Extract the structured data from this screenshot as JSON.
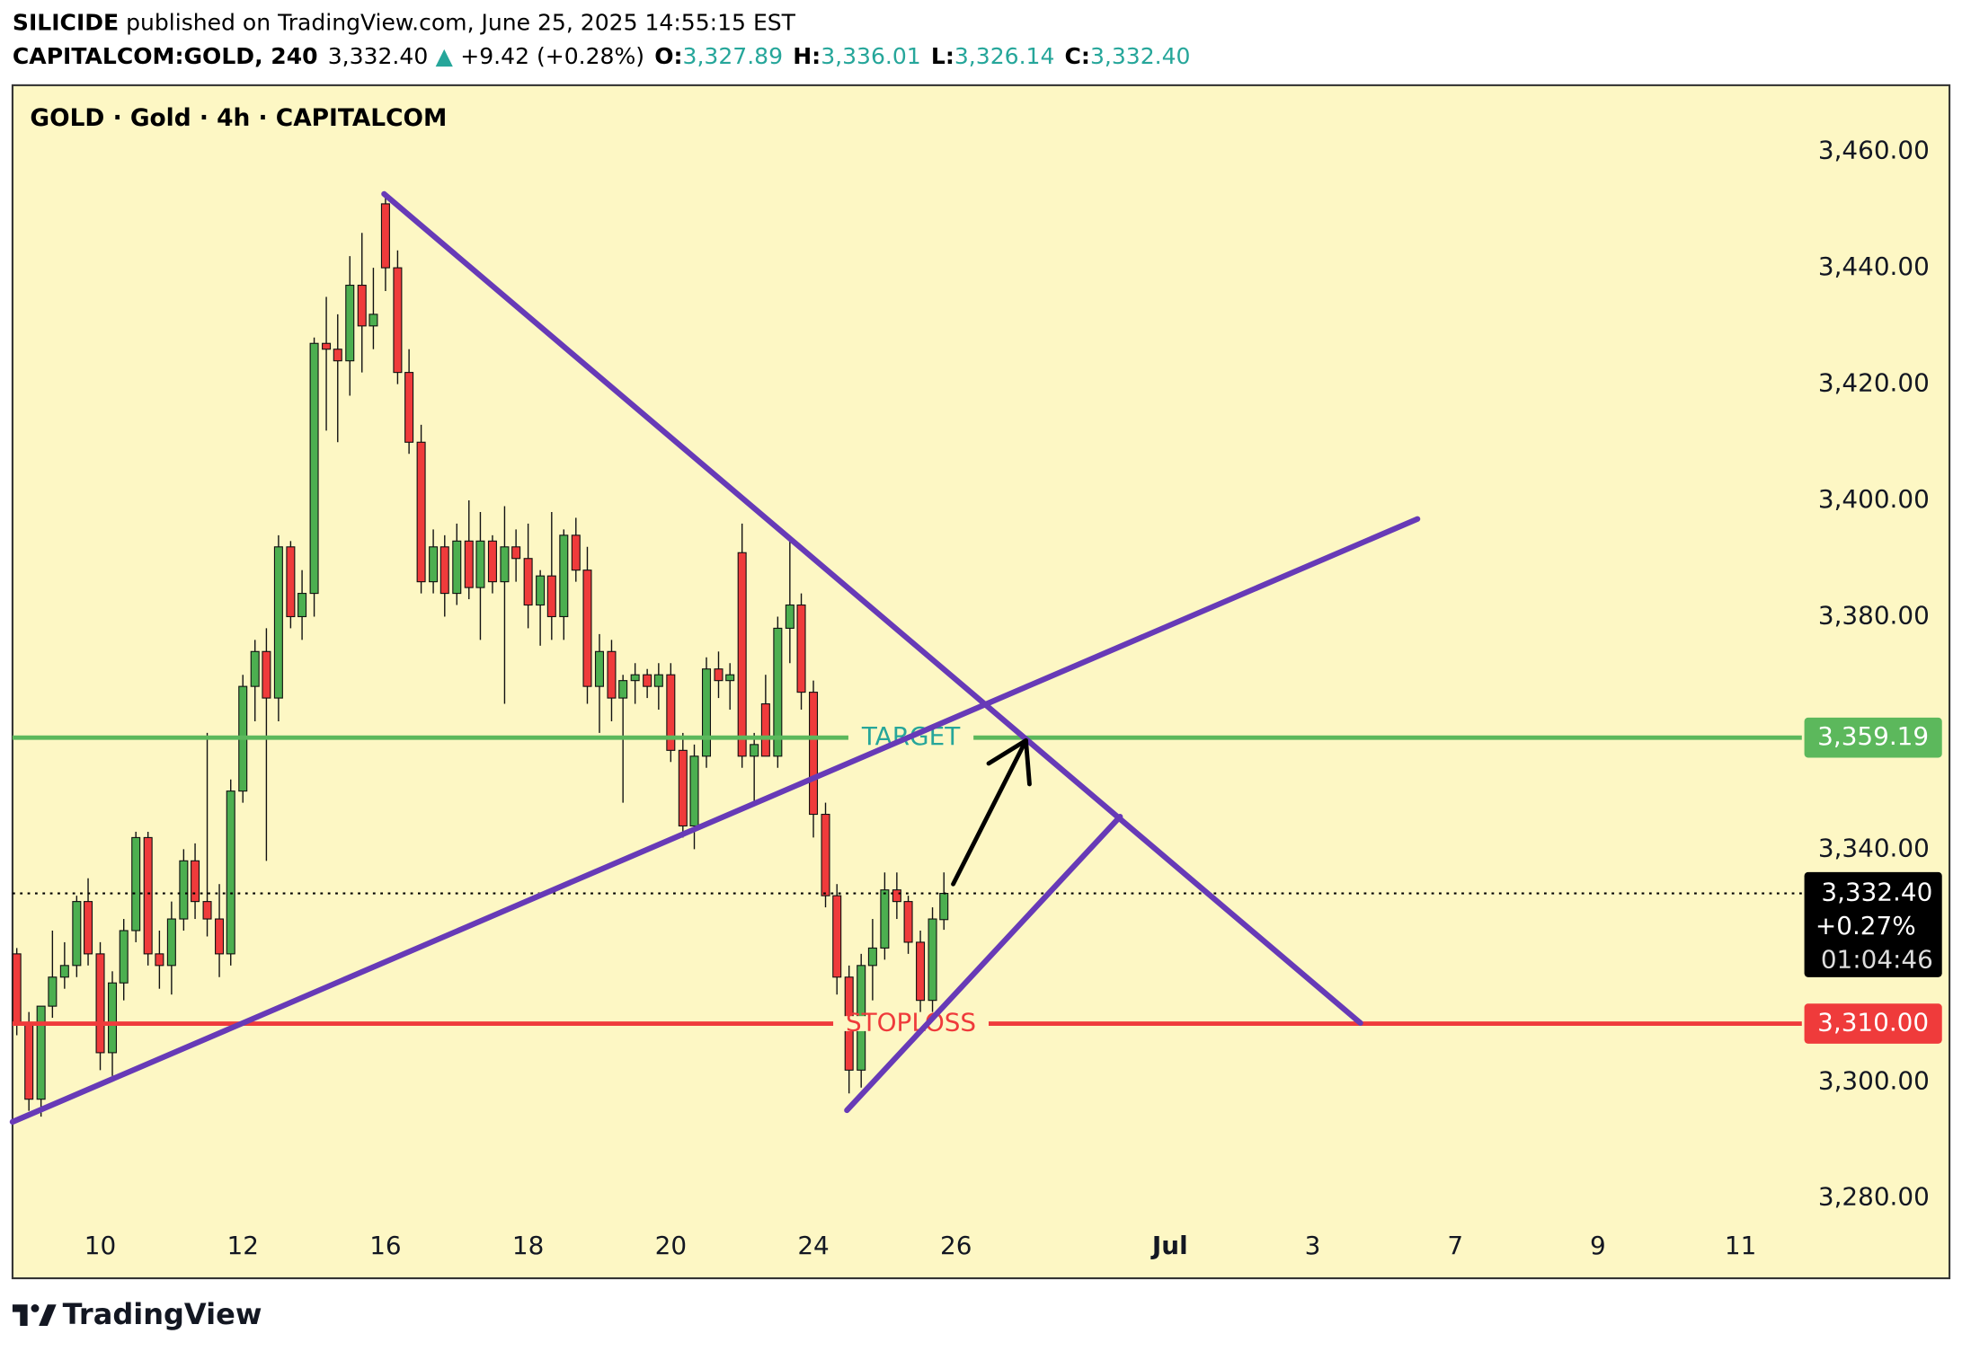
{
  "header": {
    "author": "SILICIDE",
    "published": " published on TradingView.com, June 25, 2025 14:55:15 EST",
    "symbol": "CAPITALCOM:GOLD, 240",
    "last": "3,332.40",
    "change_arrow": "▲",
    "change": "+9.42 (+0.28%)",
    "ohlc": [
      {
        "key": "O:",
        "value": "3,327.89"
      },
      {
        "key": "H:",
        "value": "3,336.01"
      },
      {
        "key": "L:",
        "value": "3,326.14"
      },
      {
        "key": "C:",
        "value": "3,332.40"
      }
    ]
  },
  "footer": {
    "brand": "TradingView"
  },
  "chart_data": {
    "type": "candlestick",
    "title": "GOLD · Gold · 4h · CAPITALCOM",
    "up_color": "#4caf50",
    "down_color": "#ef3b3b",
    "x": [
      -1.17,
      -1,
      -0.83,
      -0.67,
      -0.5,
      -0.33,
      -0.17,
      0,
      0.17,
      0.33,
      0.5,
      0.67,
      0.83,
      1,
      1.17,
      1.33,
      1.5,
      1.67,
      1.83,
      2,
      2.17,
      2.33,
      2.5,
      2.67,
      2.83,
      3,
      3.17,
      3.33,
      3.5,
      3.67,
      3.83,
      4,
      4.17,
      4.33,
      4.5,
      4.67,
      4.83,
      5,
      5.17,
      5.33,
      5.5,
      5.67,
      5.83,
      6,
      6.17,
      6.33,
      6.5,
      6.67,
      6.83,
      7,
      7.17,
      7.33,
      7.5,
      7.67,
      7.83,
      8,
      8.17,
      8.33,
      8.5,
      8.67,
      8.83,
      9,
      9.17,
      9.33,
      9.5,
      9.67,
      9.83,
      10,
      10.17,
      10.33,
      10.5,
      10.67,
      10.83,
      11,
      11.17,
      11.33,
      11.5,
      11.67,
      11.83
    ],
    "open": [
      3322,
      3310,
      3297,
      3313,
      3318,
      3320,
      3331,
      3322,
      3305,
      3317,
      3326,
      3342,
      3322,
      3320,
      3328,
      3338,
      3331,
      3328,
      3322,
      3350,
      3368,
      3374,
      3366,
      3392,
      3380,
      3384,
      3427,
      3426,
      3424,
      3437,
      3430,
      3451,
      3440,
      3422,
      3410,
      3386,
      3392,
      3384,
      3393,
      3385,
      3393,
      3386,
      3392,
      3390,
      3382,
      3387,
      3380,
      3394,
      3388,
      3368,
      3374,
      3366,
      3369,
      3370,
      3368,
      3370,
      3357,
      3344,
      3356,
      3371,
      3369,
      3391,
      3356,
      3365,
      3356,
      3378,
      3382,
      3367,
      3346,
      3332,
      3318,
      3302,
      3320,
      3323,
      3333,
      3331,
      3324,
      3314,
      3327.89
    ],
    "high": [
      3323,
      3312,
      3313,
      3326,
      3324,
      3332,
      3335,
      3324,
      3319,
      3328,
      3343,
      3343,
      3326,
      3331,
      3340,
      3341,
      3360,
      3334,
      3352,
      3370,
      3376,
      3378,
      3394,
      3393,
      3388,
      3428,
      3435,
      3432,
      3442,
      3446,
      3440,
      3452,
      3443,
      3426,
      3413,
      3395,
      3394,
      3396,
      3400,
      3398,
      3394,
      3399,
      3395,
      3396,
      3388,
      3398,
      3395,
      3397,
      3392,
      3377,
      3376,
      3370,
      3372,
      3371,
      3372,
      3372,
      3360,
      3358,
      3373,
      3374,
      3372,
      3396,
      3360,
      3370,
      3380,
      3393,
      3384,
      3369,
      3348,
      3334,
      3320,
      3322,
      3328,
      3336,
      3336,
      3332,
      3326,
      3330,
      3336.01
    ],
    "low": [
      3308,
      3295,
      3294,
      3311,
      3316,
      3318,
      3320,
      3302,
      3301,
      3314,
      3324,
      3320,
      3316,
      3315,
      3326,
      3328,
      3325,
      3318,
      3320,
      3348,
      3362,
      3338,
      3362,
      3378,
      3376,
      3380,
      3412,
      3410,
      3418,
      3422,
      3426,
      3436,
      3420,
      3408,
      3384,
      3384,
      3380,
      3382,
      3383,
      3376,
      3384,
      3365,
      3386,
      3378,
      3375,
      3376,
      3376,
      3386,
      3365,
      3360,
      3362,
      3348,
      3365,
      3366,
      3364,
      3355,
      3342,
      3340,
      3354,
      3366,
      3364,
      3354,
      3348,
      3356,
      3354,
      3372,
      3364,
      3342,
      3330,
      3315,
      3298,
      3299,
      3314,
      3321,
      3328,
      3322,
      3312,
      3312,
      3326.14
    ],
    "close": [
      3310,
      3297,
      3313,
      3318,
      3320,
      3331,
      3322,
      3305,
      3317,
      3326,
      3342,
      3322,
      3320,
      3328,
      3338,
      3331,
      3328,
      3322,
      3350,
      3368,
      3374,
      3366,
      3392,
      3380,
      3384,
      3427,
      3426,
      3424,
      3437,
      3430,
      3432,
      3440,
      3422,
      3410,
      3386,
      3392,
      3384,
      3393,
      3385,
      3393,
      3386,
      3392,
      3390,
      3382,
      3387,
      3380,
      3394,
      3388,
      3368,
      3374,
      3366,
      3369,
      3370,
      3368,
      3370,
      3357,
      3344,
      3356,
      3371,
      3369,
      3370,
      3356,
      3358,
      3356,
      3378,
      3382,
      3367,
      3346,
      3332,
      3318,
      3302,
      3320,
      3323,
      3333,
      3331,
      3324,
      3314,
      3328,
      3332.4
    ],
    "xlim": [
      -1.23,
      25.93
    ],
    "xticks": [
      {
        "value": 0,
        "label": "10"
      },
      {
        "value": 2,
        "label": "12"
      },
      {
        "value": 4,
        "label": "16"
      },
      {
        "value": 6,
        "label": "18"
      },
      {
        "value": 8,
        "label": "20"
      },
      {
        "value": 10,
        "label": "24"
      },
      {
        "value": 12,
        "label": "26"
      },
      {
        "value": 15,
        "label": "Jul"
      },
      {
        "value": 17,
        "label": "3"
      },
      {
        "value": 19,
        "label": "7"
      },
      {
        "value": 21,
        "label": "9"
      },
      {
        "value": 23,
        "label": "11"
      }
    ],
    "ylim": [
      3266.2,
      3471.4
    ],
    "yticks": [
      {
        "value": 3280,
        "label": "3,280.00"
      },
      {
        "value": 3300,
        "label": "3,300.00"
      },
      {
        "value": 3340,
        "label": "3,340.00"
      },
      {
        "value": 3380,
        "label": "3,380.00"
      },
      {
        "value": 3400,
        "label": "3,400.00"
      },
      {
        "value": 3420,
        "label": "3,420.00"
      },
      {
        "value": 3440,
        "label": "3,440.00"
      },
      {
        "value": 3460,
        "label": "3,460.00"
      }
    ],
    "levels": [
      {
        "name": "TARGET",
        "value": 3359.19,
        "label": "3,359.19",
        "color": "#5cb85c",
        "text_color": "#26a69a"
      },
      {
        "name": "STOPLOSS",
        "value": 3310,
        "label": "3,310.00",
        "color": "#ef3b3b",
        "text_color": "#ef3b3b"
      }
    ],
    "last_price": {
      "value": 3332.4,
      "label": "3,332.40",
      "change": "+0.27%",
      "countdown": "01:04:46"
    },
    "drawings": [
      {
        "shape": "trendline",
        "color": "#673ab7",
        "points": [
          [
            3.98,
            3452.7
          ],
          [
            17.67,
            3310.1
          ]
        ]
      },
      {
        "shape": "trendline",
        "color": "#673ab7",
        "points": [
          [
            -1.23,
            3293.1
          ],
          [
            18.47,
            3396.8
          ]
        ]
      },
      {
        "shape": "trendline",
        "color": "#673ab7",
        "points": [
          [
            10.47,
            3295.1
          ],
          [
            14.3,
            3345.6
          ]
        ]
      },
      {
        "shape": "arrow",
        "color": "#000000",
        "points": [
          [
            11.96,
            3334.0
          ],
          [
            12.98,
            3358.7
          ]
        ]
      }
    ]
  }
}
